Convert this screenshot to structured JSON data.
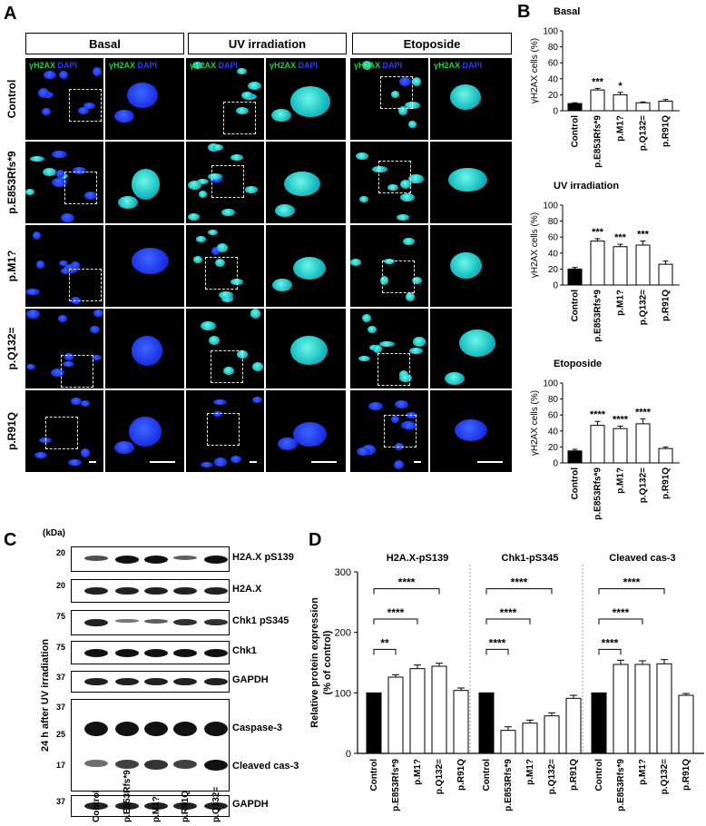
{
  "panels": {
    "A": "A",
    "B": "B",
    "C": "C",
    "D": "D"
  },
  "panelA": {
    "conditions": [
      "Basal",
      "UV irradiation",
      "Etoposide"
    ],
    "rows": [
      "Control",
      "p.E853Rfs*9",
      "p.M1?",
      "p.Q132=",
      "p.R91Q"
    ],
    "channel_label_green": "γH2AX",
    "channel_label_blue": "DAPI"
  },
  "panelB": {
    "charts": [
      {
        "title": "Basal",
        "ylabel": "γH2AX cells (%)",
        "ylim": [
          0,
          100
        ],
        "yticks": [
          0,
          20,
          40,
          60,
          80,
          100
        ],
        "categories": [
          "Control",
          "p.E853Rfs*9",
          "p.M1?",
          "p.Q132=",
          "p.R91Q"
        ],
        "values": [
          9,
          26,
          20,
          10,
          12
        ],
        "errors": [
          1,
          2,
          3,
          1,
          2
        ],
        "significance": [
          "",
          "***",
          "*",
          "",
          ""
        ]
      },
      {
        "title": "UV irradiation",
        "ylabel": "γH2AX cells (%)",
        "ylim": [
          0,
          100
        ],
        "yticks": [
          0,
          20,
          40,
          60,
          80,
          100
        ],
        "categories": [
          "Control",
          "p.E853Rfs*9",
          "p.M1?",
          "p.Q132=",
          "p.R91Q"
        ],
        "values": [
          20,
          55,
          48,
          50,
          26
        ],
        "errors": [
          2,
          3,
          3,
          5,
          4
        ],
        "significance": [
          "",
          "***",
          "***",
          "***",
          ""
        ]
      },
      {
        "title": "Etoposide",
        "ylabel": "γH2AX cells (%)",
        "ylim": [
          0,
          100
        ],
        "yticks": [
          0,
          20,
          40,
          60,
          80,
          100
        ],
        "categories": [
          "Control",
          "p.E853Rfs*9",
          "p.M1?",
          "p.Q132=",
          "p.R91Q"
        ],
        "values": [
          15,
          47,
          43,
          49,
          18
        ],
        "errors": [
          2,
          5,
          3,
          6,
          2
        ],
        "significance": [
          "",
          "****",
          "****",
          "****",
          ""
        ]
      }
    ]
  },
  "panelC": {
    "kda_label": "(kDa)",
    "side_label": "24 h after UV irradiation",
    "lanes": [
      "Control",
      "p.E853Rfs*9",
      "p.M1?",
      "p.R91Q",
      "p.Q132="
    ],
    "blots": [
      {
        "label": "H2A.X pS139",
        "mw": [
          "20"
        ]
      },
      {
        "label": "H2A.X",
        "mw": [
          "20"
        ]
      },
      {
        "label": "Chk1 pS345",
        "mw": [
          "75"
        ]
      },
      {
        "label": "Chk1",
        "mw": [
          "75"
        ]
      },
      {
        "label": "GAPDH",
        "mw": [
          "37"
        ]
      },
      {
        "label": "Caspase-3",
        "label2": "Cleaved cas-3",
        "mw": [
          "37",
          "25",
          "17"
        ]
      },
      {
        "label": "GAPDH",
        "mw": [
          "37"
        ]
      }
    ]
  },
  "chart_data": {
    "type": "bar",
    "ylabel": "Relative protein expression (% of control)",
    "ylim": [
      0,
      300
    ],
    "yticks": [
      0,
      100,
      200,
      300
    ],
    "groups": [
      {
        "title": "H2A.X-pS139",
        "categories": [
          "Control",
          "p.E853Rfs*9",
          "p.M1?",
          "p.Q132=",
          "p.R91Q"
        ],
        "values": [
          100,
          126,
          140,
          144,
          104
        ],
        "errors": [
          0,
          4,
          6,
          5,
          4
        ],
        "brackets": [
          "**",
          "****",
          "****"
        ]
      },
      {
        "title": "Chk1-pS345",
        "categories": [
          "Control",
          "p.E853Rfs*9",
          "p.M1?",
          "p.Q132=",
          "p.R91Q"
        ],
        "values": [
          100,
          38,
          50,
          62,
          91
        ],
        "errors": [
          0,
          6,
          5,
          5,
          5
        ],
        "brackets": [
          "****",
          "****",
          "****"
        ]
      },
      {
        "title": "Cleaved cas-3",
        "categories": [
          "Control",
          "p.E853Rfs*9",
          "p.M1?",
          "p.Q132=",
          "p.R91Q"
        ],
        "values": [
          100,
          147,
          147,
          148,
          96
        ],
        "errors": [
          0,
          7,
          6,
          7,
          3
        ],
        "brackets": [
          "****",
          "****",
          "****"
        ]
      }
    ]
  }
}
